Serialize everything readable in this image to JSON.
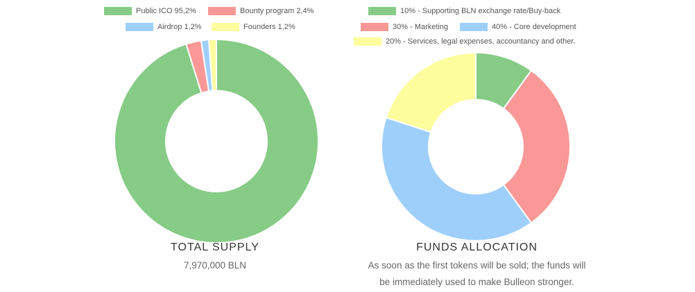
{
  "chart_data": [
    {
      "type": "pie",
      "variant": "donut",
      "title": "TOTAL SUPPLY",
      "subtitle": "7,970,000 BLN",
      "legend_position": "top",
      "slices": [
        {
          "label": "Public ICO 95,2%",
          "value": 95.2,
          "color": "#86cb86"
        },
        {
          "label": "Bounty program 2,4%",
          "value": 2.4,
          "color": "#f99896"
        },
        {
          "label": "Airdrop 1,2%",
          "value": 1.2,
          "color": "#9ecffb"
        },
        {
          "label": "Founders 1,2%",
          "value": 1.2,
          "color": "#fdfd9e"
        }
      ]
    },
    {
      "type": "pie",
      "variant": "donut",
      "title": "FUNDS ALLOCATION",
      "subtitle": "As soon as the first tokens will be sold; the funds will be immediately used to make Bulleon stronger.",
      "subtitle_lines": [
        "As soon as the first tokens will be sold; the funds will",
        "be immediately used to make Bulleon stronger."
      ],
      "legend_position": "top",
      "slices": [
        {
          "label": "10% - Supporting BLN exchange rate/Buy-back",
          "value": 10,
          "color": "#86cb86"
        },
        {
          "label": "30% - Marketing",
          "value": 30,
          "color": "#f99896"
        },
        {
          "label": "40% - Core development",
          "value": 40,
          "color": "#9ecffb"
        },
        {
          "label": "20% - Services, legal expenses, accountancy and other.",
          "value": 20,
          "color": "#fdfd9e"
        }
      ]
    }
  ]
}
